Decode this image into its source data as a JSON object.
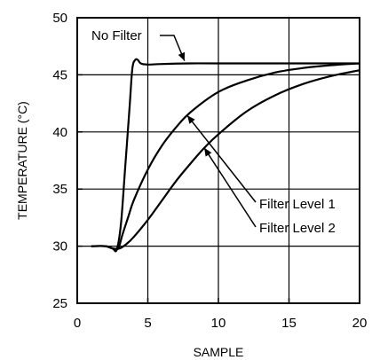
{
  "chart_data": {
    "type": "line",
    "title": "",
    "xlabel": "SAMPLE",
    "ylabel": "TEMPERATURE (°C)",
    "xlim": [
      0,
      20
    ],
    "ylim": [
      25,
      50
    ],
    "x_ticks": [
      "0",
      "5",
      "10",
      "15",
      "20"
    ],
    "y_ticks": [
      "25",
      "30",
      "35",
      "40",
      "45",
      "50"
    ],
    "grid": true,
    "series": [
      {
        "name": "No Filter",
        "x": [
          1,
          2,
          2.5,
          2.8,
          3.1,
          3.4,
          3.7,
          3.9,
          4.1,
          4.3,
          4.5,
          5,
          6,
          8,
          10,
          15,
          20
        ],
        "y": [
          30,
          30,
          29.8,
          29.7,
          32,
          37,
          42,
          45.5,
          46.3,
          46.3,
          46.0,
          45.9,
          45.95,
          46,
          46,
          46,
          46
        ]
      },
      {
        "name": "Filter Level 1",
        "x": [
          1,
          2,
          2.5,
          2.9,
          3.2,
          3.6,
          4,
          5,
          6,
          7,
          8,
          10,
          12,
          14,
          16,
          18,
          20
        ],
        "y": [
          30,
          30,
          29.8,
          29.8,
          31,
          32.5,
          34,
          36.7,
          38.8,
          40.4,
          41.7,
          43.5,
          44.5,
          45.2,
          45.6,
          45.85,
          46
        ]
      },
      {
        "name": "Filter Level 2",
        "x": [
          1,
          2,
          2.5,
          3,
          3.5,
          4,
          5,
          6,
          7,
          8,
          9,
          10,
          12,
          14,
          16,
          18,
          20
        ],
        "y": [
          30,
          30,
          29.8,
          29.8,
          30.2,
          30.8,
          32.3,
          34.0,
          35.7,
          37.2,
          38.6,
          39.8,
          41.8,
          43.2,
          44.2,
          44.9,
          45.4
        ]
      }
    ],
    "annotations": [
      {
        "text": "No Filter",
        "series": 0,
        "at_x": 7.6
      },
      {
        "text": "Filter Level 1",
        "series": 1,
        "at_x": 7.8
      },
      {
        "text": "Filter Level 2",
        "series": 2,
        "at_x": 9.0
      }
    ]
  }
}
